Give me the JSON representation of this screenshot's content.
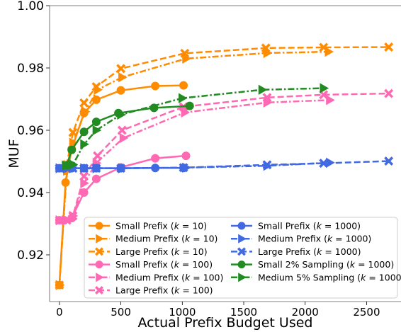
{
  "chart_data": {
    "type": "line",
    "title": "",
    "xlabel": "Actual Prefix Budget Used",
    "ylabel": "MUF",
    "xlim": [
      -80,
      2780
    ],
    "ylim": [
      0.905,
      1.0
    ],
    "xticks": [
      0,
      500,
      1000,
      1500,
      2000,
      2500
    ],
    "xtick_labels": [
      "0",
      "500",
      "1000",
      "1500",
      "2000",
      "2500"
    ],
    "yticks": [
      0.92,
      0.94,
      0.96,
      0.98,
      1.0
    ],
    "ytick_labels": [
      "0.92",
      "0.94",
      "0.96",
      "0.98",
      "1.00"
    ],
    "grid": false,
    "legend_position": "lower-right",
    "legend_columns": 2,
    "series": [
      {
        "label_main": "Small Prefix (",
        "label_italic": "k",
        "label_tail": " = 10)",
        "color": "#ff8c00",
        "dash": "solid",
        "marker": "circle",
        "x": [
          0,
          50,
          100,
          200,
          300,
          500,
          780,
          1010
        ],
        "y": [
          0.9103,
          0.9432,
          0.954,
          0.9655,
          0.9698,
          0.9728,
          0.9742,
          0.9744
        ]
      },
      {
        "label_main": "Medium Prefix (",
        "label_italic": "k",
        "label_tail": " = 10)",
        "color": "#ff8c00",
        "dash": "dashdot",
        "marker": "triangle-right",
        "x": [
          0,
          60,
          110,
          210,
          310,
          510,
          1030,
          1690,
          2190
        ],
        "y": [
          0.9103,
          0.947,
          0.956,
          0.966,
          0.973,
          0.977,
          0.983,
          0.9848,
          0.9852
        ]
      },
      {
        "label_main": "Large Prefix (",
        "label_italic": "k",
        "label_tail": " = 10)",
        "color": "#ff8c00",
        "dash": "dashed",
        "marker": "x",
        "x": [
          0,
          60,
          110,
          200,
          300,
          500,
          1020,
          1680,
          2150,
          2680
        ],
        "y": [
          0.9103,
          0.949,
          0.9593,
          0.9688,
          0.974,
          0.9798,
          0.9847,
          0.9864,
          0.9866,
          0.9867
        ]
      },
      {
        "label_main": "Small Prefix (",
        "label_italic": "k",
        "label_tail": " = 100)",
        "color": "#ff69b4",
        "dash": "solid",
        "marker": "circle",
        "x": [
          0,
          40,
          100,
          200,
          300,
          500,
          780,
          1030
        ],
        "y": [
          0.9311,
          0.9311,
          0.9318,
          0.94,
          0.9444,
          0.9481,
          0.951,
          0.9518
        ]
      },
      {
        "label_main": "Medium Prefix (",
        "label_italic": "k",
        "label_tail": " = 100)",
        "color": "#ff69b4",
        "dash": "dashdot",
        "marker": "triangle-right",
        "x": [
          0,
          50,
          110,
          200,
          300,
          520,
          1020,
          1690,
          2200
        ],
        "y": [
          0.9311,
          0.9311,
          0.9325,
          0.943,
          0.9495,
          0.9575,
          0.9657,
          0.9689,
          0.9697
        ]
      },
      {
        "label_main": "Large Prefix (",
        "label_italic": "k",
        "label_tail": " = 100)",
        "color": "#ff69b4",
        "dash": "dashed",
        "marker": "x",
        "x": [
          0,
          60,
          110,
          200,
          310,
          510,
          1010,
          1690,
          2150,
          2680
        ],
        "y": [
          0.9311,
          0.9311,
          0.9325,
          0.9452,
          0.9518,
          0.96,
          0.9675,
          0.9705,
          0.9714,
          0.9718
        ]
      },
      {
        "label_main": "Small Prefix (",
        "label_italic": "k",
        "label_tail": " = 1000)",
        "color": "#4169e1",
        "dash": "solid",
        "marker": "circle",
        "x": [
          0,
          40,
          100,
          200,
          300,
          500,
          780,
          1010
        ],
        "y": [
          0.9478,
          0.9478,
          0.9478,
          0.9478,
          0.9478,
          0.9478,
          0.9479,
          0.9479
        ]
      },
      {
        "label_main": "Medium Prefix (",
        "label_italic": "k",
        "label_tail": " = 1000)",
        "color": "#4169e1",
        "dash": "dashdot",
        "marker": "triangle-right",
        "x": [
          0,
          60,
          110,
          200,
          300,
          510,
          1030,
          1690,
          2200
        ],
        "y": [
          0.9478,
          0.9478,
          0.9478,
          0.9478,
          0.9478,
          0.9478,
          0.948,
          0.9486,
          0.9496
        ]
      },
      {
        "label_main": "Large Prefix (",
        "label_italic": "k",
        "label_tail": " = 1000)",
        "color": "#4169e1",
        "dash": "dashed",
        "marker": "x",
        "x": [
          0,
          60,
          110,
          200,
          300,
          500,
          1010,
          1690,
          2150,
          2680
        ],
        "y": [
          0.9478,
          0.9478,
          0.9478,
          0.9478,
          0.9478,
          0.9478,
          0.948,
          0.9489,
          0.9494,
          0.9501
        ]
      },
      {
        "label_main": "Small 2% Sampling (",
        "label_italic": "k",
        "label_tail": " = 1000)",
        "color": "#228b22",
        "dash": "solid",
        "marker": "circle",
        "x": [
          60,
          100,
          200,
          300,
          480,
          770,
          1060
        ],
        "y": [
          0.9488,
          0.9537,
          0.9595,
          0.9627,
          0.9655,
          0.9672,
          0.9678
        ]
      },
      {
        "label_main": "Medium 5% Sampling (",
        "label_italic": "k",
        "label_tail": " = 1000)",
        "color": "#228b22",
        "dash": "dashdot",
        "marker": "triangle-right",
        "x": [
          50,
          110,
          200,
          300,
          500,
          1000,
          1650,
          2150
        ],
        "y": [
          0.9487,
          0.949,
          0.9555,
          0.96,
          0.965,
          0.9703,
          0.973,
          0.9735
        ]
      }
    ]
  }
}
